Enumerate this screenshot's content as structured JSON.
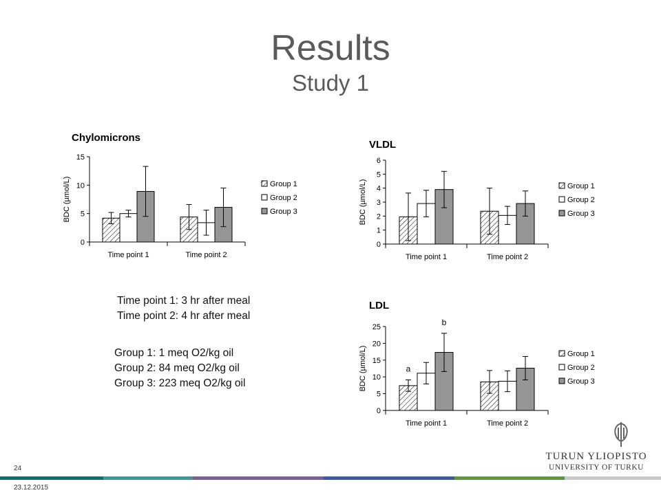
{
  "slide": {
    "title": "Results",
    "subtitle": "Study 1",
    "page_number": "24",
    "date": "23.12.2015"
  },
  "notes": {
    "time_points": [
      "Time point 1: 3 hr after meal",
      "Time point 2: 4 hr after meal"
    ],
    "groups": [
      "Group 1: 1 meq O2/kg oil",
      "Group 2: 84 meq O2/kg oil",
      "Group 3: 223 meq O2/kg oil"
    ]
  },
  "logo": {
    "line1": "TURUN YLIOPISTO",
    "line2": "UNIVERSITY OF TURKU"
  },
  "footer_colors": [
    "#0e6e7a",
    "#3a9a9a",
    "#7a5d9a",
    "#3a5aa8",
    "#5a9a3a",
    "#c8c8c8"
  ],
  "colors": {
    "group1_fill": "#ffffff",
    "group2_fill": "#ffffff",
    "group3_fill": "#969696"
  },
  "chart_data": [
    {
      "type": "bar",
      "title": "Chylomicrons",
      "ylabel": "BDC (µmol/L)",
      "ylim": [
        0,
        15
      ],
      "yticks": [
        0,
        5,
        10,
        15
      ],
      "categories": [
        "Time point 1",
        "Time point 2"
      ],
      "series": [
        {
          "name": "Group 1",
          "pattern": "hatch",
          "values": [
            4.2,
            4.4
          ],
          "err": [
            1.0,
            2.2
          ]
        },
        {
          "name": "Group 2",
          "pattern": "white",
          "values": [
            5.0,
            3.4
          ],
          "err": [
            0.6,
            2.2
          ]
        },
        {
          "name": "Group 3",
          "pattern": "gray",
          "values": [
            8.9,
            6.1
          ],
          "err": [
            4.4,
            3.4
          ]
        }
      ],
      "annotations": [],
      "legend": "right"
    },
    {
      "type": "bar",
      "title": "VLDL",
      "ylabel": "BDC (µmol/L)",
      "ylim": [
        0,
        6
      ],
      "yticks": [
        0,
        1,
        2,
        3,
        4,
        5,
        6
      ],
      "categories": [
        "Time point 1",
        "Time point 2"
      ],
      "series": [
        {
          "name": "Group 1",
          "pattern": "hatch",
          "values": [
            1.95,
            2.35
          ],
          "err": [
            1.7,
            1.65
          ]
        },
        {
          "name": "Group 2",
          "pattern": "white",
          "values": [
            2.9,
            2.05
          ],
          "err": [
            0.95,
            0.65
          ]
        },
        {
          "name": "Group 3",
          "pattern": "gray",
          "values": [
            3.9,
            2.9
          ],
          "err": [
            1.3,
            0.9
          ]
        }
      ],
      "annotations": [],
      "legend": "right"
    },
    {
      "type": "bar",
      "title": "LDL",
      "ylabel": "BDC (µmol/L)",
      "ylim": [
        0,
        25
      ],
      "yticks": [
        0,
        5,
        10,
        15,
        20,
        25
      ],
      "categories": [
        "Time point 1",
        "Time point 2"
      ],
      "series": [
        {
          "name": "Group 1",
          "pattern": "hatch",
          "values": [
            7.4,
            8.5
          ],
          "err": [
            1.7,
            3.4
          ]
        },
        {
          "name": "Group 2",
          "pattern": "white",
          "values": [
            11.1,
            8.7
          ],
          "err": [
            3.2,
            3.1
          ]
        },
        {
          "name": "Group 3",
          "pattern": "gray",
          "values": [
            17.3,
            12.6
          ],
          "err": [
            5.7,
            3.5
          ]
        }
      ],
      "annotations": [
        {
          "text": "a",
          "category": 0,
          "series": 0
        },
        {
          "text": "b",
          "category": 0,
          "series": 2
        }
      ],
      "legend": "right"
    }
  ]
}
